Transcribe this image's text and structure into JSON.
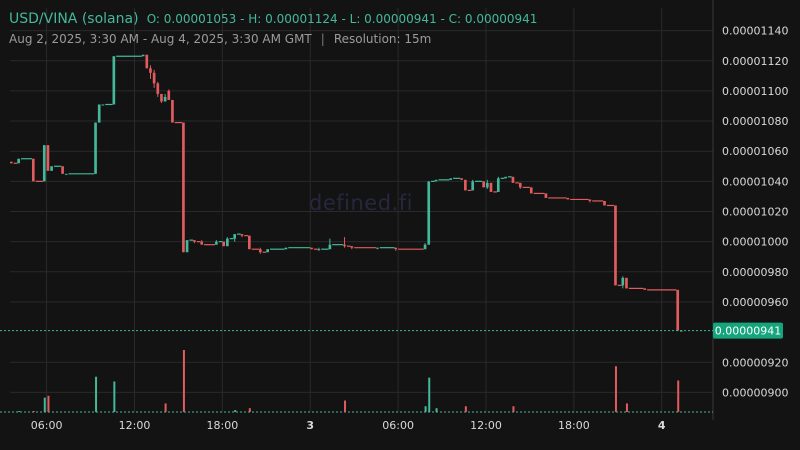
{
  "header": {
    "pair": "USD/VINA (solana)",
    "ohlc": "O: 0.00001053 - H: 0.00001124 - L: 0.00000941 - C: 0.00000941",
    "range": "Aug 2, 2025, 3:30 AM - Aug 4, 2025, 3:30 AM GMT",
    "separator": "|",
    "resolution": "Resolution: 15m"
  },
  "watermark": "defined.fi",
  "colors": {
    "background": "#131313",
    "up": "#43b99a",
    "down": "#e15c5f",
    "grid": "#2a2a2a",
    "text": "#d9d9d9",
    "last_price_tag": "#14a57d"
  },
  "chart_data": {
    "type": "candlestick",
    "ylim": [
      8.87e-06,
      1.155e-05
    ],
    "yticks": [
      "0.00001140",
      "0.00001120",
      "0.00001100",
      "0.00001080",
      "0.00001060",
      "0.00001040",
      "0.00001020",
      "0.00001000",
      "0.00000980",
      "0.00000960",
      "0.00000920",
      "0.00000900"
    ],
    "ytick_values": [
      1.14e-05,
      1.12e-05,
      1.1e-05,
      1.08e-05,
      1.06e-05,
      1.04e-05,
      1.02e-05,
      1e-05,
      9.8e-06,
      9.6e-06,
      9.2e-06,
      9e-06
    ],
    "last_price": "0.00000941",
    "last_price_value": 9.41e-06,
    "xlim": [
      "2025-08-02T03:30",
      "2025-08-04T03:30"
    ],
    "xticks": [
      {
        "label": "06:00",
        "time": "2025-08-02T06:00",
        "bold": false
      },
      {
        "label": "12:00",
        "time": "2025-08-02T12:00",
        "bold": false
      },
      {
        "label": "18:00",
        "time": "2025-08-02T18:00",
        "bold": false
      },
      {
        "label": "3",
        "time": "2025-08-03T00:00",
        "bold": true
      },
      {
        "label": "06:00",
        "time": "2025-08-03T06:00",
        "bold": false
      },
      {
        "label": "12:00",
        "time": "2025-08-03T12:00",
        "bold": false
      },
      {
        "label": "18:00",
        "time": "2025-08-03T18:00",
        "bold": false
      },
      {
        "label": "4",
        "time": "2025-08-04T00:00",
        "bold": true
      }
    ],
    "candles": [
      {
        "t": "2025-08-02T03:30",
        "o": 1.053e-05,
        "h": 1.053e-05,
        "l": 1.052e-05,
        "c": 1.052e-05
      },
      {
        "t": "2025-08-02T04:00",
        "o": 1.052e-05,
        "h": 1.055e-05,
        "l": 1.052e-05,
        "c": 1.055e-05
      },
      {
        "t": "2025-08-02T05:00",
        "o": 1.055e-05,
        "h": 1.055e-05,
        "l": 1.04e-05,
        "c": 1.04e-05
      },
      {
        "t": "2025-08-02T05:45",
        "o": 1.04e-05,
        "h": 1.064e-05,
        "l": 1.04e-05,
        "c": 1.064e-05
      },
      {
        "t": "2025-08-02T06:00",
        "o": 1.064e-05,
        "h": 1.064e-05,
        "l": 1.047e-05,
        "c": 1.047e-05
      },
      {
        "t": "2025-08-02T06:15",
        "o": 1.047e-05,
        "h": 1.05e-05,
        "l": 1.047e-05,
        "c": 1.05e-05
      },
      {
        "t": "2025-08-02T07:00",
        "o": 1.05e-05,
        "h": 1.05e-05,
        "l": 1.045e-05,
        "c": 1.045e-05
      },
      {
        "t": "2025-08-02T07:15",
        "o": 1.045e-05,
        "h": 1.045e-05,
        "l": 1.045e-05,
        "c": 1.045e-05
      },
      {
        "t": "2025-08-02T09:15",
        "o": 1.045e-05,
        "h": 1.079e-05,
        "l": 1.045e-05,
        "c": 1.079e-05
      },
      {
        "t": "2025-08-02T09:30",
        "o": 1.079e-05,
        "h": 1.091e-05,
        "l": 1.079e-05,
        "c": 1.091e-05
      },
      {
        "t": "2025-08-02T09:45",
        "o": 1.091e-05,
        "h": 1.091e-05,
        "l": 1.091e-05,
        "c": 1.091e-05
      },
      {
        "t": "2025-08-02T10:30",
        "o": 1.091e-05,
        "h": 1.123e-05,
        "l": 1.091e-05,
        "c": 1.123e-05
      },
      {
        "t": "2025-08-02T12:30",
        "o": 1.123e-05,
        "h": 1.124e-05,
        "l": 1.123e-05,
        "c": 1.124e-05
      },
      {
        "t": "2025-08-02T12:45",
        "o": 1.124e-05,
        "h": 1.124e-05,
        "l": 1.115e-05,
        "c": 1.115e-05
      },
      {
        "t": "2025-08-02T13:00",
        "o": 1.115e-05,
        "h": 1.117e-05,
        "l": 1.108e-05,
        "c": 1.112e-05
      },
      {
        "t": "2025-08-02T13:15",
        "o": 1.112e-05,
        "h": 1.114e-05,
        "l": 1.102e-05,
        "c": 1.105e-05
      },
      {
        "t": "2025-08-02T13:30",
        "o": 1.105e-05,
        "h": 1.106e-05,
        "l": 1.096e-05,
        "c": 1.098e-05
      },
      {
        "t": "2025-08-02T13:45",
        "o": 1.098e-05,
        "h": 1.098e-05,
        "l": 1.092e-05,
        "c": 1.093e-05
      },
      {
        "t": "2025-08-02T14:00",
        "o": 1.093e-05,
        "h": 1.098e-05,
        "l": 1.093e-05,
        "c": 1.096e-05
      },
      {
        "t": "2025-08-02T14:15",
        "o": 1.1e-05,
        "h": 1.101e-05,
        "l": 1.094e-05,
        "c": 1.094e-05
      },
      {
        "t": "2025-08-02T14:30",
        "o": 1.094e-05,
        "h": 1.094e-05,
        "l": 1.079e-05,
        "c": 1.079e-05
      },
      {
        "t": "2025-08-02T15:15",
        "o": 1.079e-05,
        "h": 1.079e-05,
        "l": 9.93e-06,
        "c": 9.93e-06
      },
      {
        "t": "2025-08-02T15:30",
        "o": 9.93e-06,
        "h": 1.001e-05,
        "l": 9.93e-06,
        "c": 1.001e-05
      },
      {
        "t": "2025-08-02T16:00",
        "o": 1.001e-05,
        "h": 1.001e-05,
        "l": 9.99e-06,
        "c": 1e-05
      },
      {
        "t": "2025-08-02T16:30",
        "o": 1e-05,
        "h": 1.001e-05,
        "l": 9.98e-06,
        "c": 9.98e-06
      },
      {
        "t": "2025-08-02T17:30",
        "o": 9.98e-06,
        "h": 1.001e-05,
        "l": 9.98e-06,
        "c": 1e-05
      },
      {
        "t": "2025-08-02T18:00",
        "o": 1e-05,
        "h": 1e-05,
        "l": 9.97e-06,
        "c": 9.97e-06
      },
      {
        "t": "2025-08-02T18:15",
        "o": 9.97e-06,
        "h": 1.003e-05,
        "l": 9.97e-06,
        "c": 1.002e-05
      },
      {
        "t": "2025-08-02T18:45",
        "o": 1.002e-05,
        "h": 1.005e-05,
        "l": 1e-05,
        "c": 1.005e-05
      },
      {
        "t": "2025-08-02T19:15",
        "o": 1.005e-05,
        "h": 1.005e-05,
        "l": 1.003e-05,
        "c": 1.004e-05
      },
      {
        "t": "2025-08-02T19:45",
        "o": 1.004e-05,
        "h": 1.004e-05,
        "l": 9.95e-06,
        "c": 9.95e-06
      },
      {
        "t": "2025-08-02T20:30",
        "o": 9.95e-06,
        "h": 9.96e-06,
        "l": 9.92e-06,
        "c": 9.93e-06
      },
      {
        "t": "2025-08-02T21:00",
        "o": 9.93e-06,
        "h": 9.95e-06,
        "l": 9.93e-06,
        "c": 9.95e-06
      },
      {
        "t": "2025-08-02T22:15",
        "o": 9.95e-06,
        "h": 9.96e-06,
        "l": 9.95e-06,
        "c": 9.96e-06
      },
      {
        "t": "2025-08-03T00:00",
        "o": 9.96e-06,
        "h": 9.96e-06,
        "l": 9.95e-06,
        "c": 9.95e-06
      },
      {
        "t": "2025-08-03T00:30",
        "o": 9.95e-06,
        "h": 9.96e-06,
        "l": 9.94e-06,
        "c": 9.95e-06
      },
      {
        "t": "2025-08-03T01:15",
        "o": 9.95e-06,
        "h": 1.002e-05,
        "l": 9.95e-06,
        "c": 9.98e-06
      },
      {
        "t": "2025-08-03T02:15",
        "o": 9.98e-06,
        "h": 1.003e-05,
        "l": 9.96e-06,
        "c": 9.97e-06
      },
      {
        "t": "2025-08-03T02:45",
        "o": 9.97e-06,
        "h": 9.97e-06,
        "l": 9.95e-06,
        "c": 9.96e-06
      },
      {
        "t": "2025-08-03T04:30",
        "o": 9.96e-06,
        "h": 9.96e-06,
        "l": 9.95e-06,
        "c": 9.96e-06
      },
      {
        "t": "2025-08-03T05:45",
        "o": 9.96e-06,
        "h": 9.96e-06,
        "l": 9.94e-06,
        "c": 9.95e-06
      },
      {
        "t": "2025-08-03T07:45",
        "o": 9.95e-06,
        "h": 9.99e-06,
        "l": 9.95e-06,
        "c": 9.98e-06
      },
      {
        "t": "2025-08-03T08:00",
        "o": 9.98e-06,
        "h": 1.04e-05,
        "l": 9.98e-06,
        "c": 1.04e-05
      },
      {
        "t": "2025-08-03T08:30",
        "o": 1.04e-05,
        "h": 1.041e-05,
        "l": 1.04e-05,
        "c": 1.041e-05
      },
      {
        "t": "2025-08-03T09:30",
        "o": 1.041e-05,
        "h": 1.042e-05,
        "l": 1.041e-05,
        "c": 1.042e-05
      },
      {
        "t": "2025-08-03T10:15",
        "o": 1.042e-05,
        "h": 1.042e-05,
        "l": 1.041e-05,
        "c": 1.041e-05
      },
      {
        "t": "2025-08-03T10:30",
        "o": 1.041e-05,
        "h": 1.041e-05,
        "l": 1.034e-05,
        "c": 1.034e-05
      },
      {
        "t": "2025-08-03T11:00",
        "o": 1.034e-05,
        "h": 1.041e-05,
        "l": 1.034e-05,
        "c": 1.04e-05
      },
      {
        "t": "2025-08-03T11:45",
        "o": 1.04e-05,
        "h": 1.04e-05,
        "l": 1.036e-05,
        "c": 1.036e-05
      },
      {
        "t": "2025-08-03T12:00",
        "o": 1.036e-05,
        "h": 1.041e-05,
        "l": 1.035e-05,
        "c": 1.039e-05
      },
      {
        "t": "2025-08-03T12:15",
        "o": 1.039e-05,
        "h": 1.039e-05,
        "l": 1.033e-05,
        "c": 1.033e-05
      },
      {
        "t": "2025-08-03T12:45",
        "o": 1.033e-05,
        "h": 1.043e-05,
        "l": 1.033e-05,
        "c": 1.042e-05
      },
      {
        "t": "2025-08-03T13:15",
        "o": 1.042e-05,
        "h": 1.043e-05,
        "l": 1.042e-05,
        "c": 1.043e-05
      },
      {
        "t": "2025-08-03T13:45",
        "o": 1.043e-05,
        "h": 1.043e-05,
        "l": 1.039e-05,
        "c": 1.039e-05
      },
      {
        "t": "2025-08-03T14:15",
        "o": 1.039e-05,
        "h": 1.039e-05,
        "l": 1.035e-05,
        "c": 1.036e-05
      },
      {
        "t": "2025-08-03T15:00",
        "o": 1.036e-05,
        "h": 1.036e-05,
        "l": 1.032e-05,
        "c": 1.032e-05
      },
      {
        "t": "2025-08-03T16:00",
        "o": 1.032e-05,
        "h": 1.032e-05,
        "l": 1.029e-05,
        "c": 1.029e-05
      },
      {
        "t": "2025-08-03T17:30",
        "o": 1.029e-05,
        "h": 1.029e-05,
        "l": 1.028e-05,
        "c": 1.028e-05
      },
      {
        "t": "2025-08-03T19:00",
        "o": 1.028e-05,
        "h": 1.028e-05,
        "l": 1.026e-05,
        "c": 1.027e-05
      },
      {
        "t": "2025-08-03T20:00",
        "o": 1.027e-05,
        "h": 1.027e-05,
        "l": 1.024e-05,
        "c": 1.024e-05
      },
      {
        "t": "2025-08-03T20:45",
        "o": 1.024e-05,
        "h": 1.024e-05,
        "l": 9.71e-06,
        "c": 9.71e-06
      },
      {
        "t": "2025-08-03T21:15",
        "o": 9.71e-06,
        "h": 9.77e-06,
        "l": 9.69e-06,
        "c": 9.76e-06
      },
      {
        "t": "2025-08-03T21:30",
        "o": 9.76e-06,
        "h": 9.76e-06,
        "l": 9.69e-06,
        "c": 9.69e-06
      },
      {
        "t": "2025-08-03T22:45",
        "o": 9.69e-06,
        "h": 9.69e-06,
        "l": 9.68e-06,
        "c": 9.68e-06
      },
      {
        "t": "2025-08-04T01:00",
        "o": 9.68e-06,
        "h": 9.68e-06,
        "l": 9.41e-06,
        "c": 9.41e-06
      },
      {
        "t": "2025-08-04T01:15",
        "o": 9.41e-06,
        "h": 9.41e-06,
        "l": 9.41e-06,
        "c": 9.41e-06
      }
    ],
    "volume": [
      {
        "t": "2025-08-02T04:00",
        "v": 1,
        "up": true
      },
      {
        "t": "2025-08-02T05:00",
        "v": 1,
        "up": false
      },
      {
        "t": "2025-08-02T05:45",
        "v": 15,
        "up": true
      },
      {
        "t": "2025-08-02T06:00",
        "v": 17,
        "up": false
      },
      {
        "t": "2025-08-02T09:15",
        "v": 37,
        "up": true
      },
      {
        "t": "2025-08-02T10:30",
        "v": 32,
        "up": true
      },
      {
        "t": "2025-08-02T14:00",
        "v": 9,
        "up": false
      },
      {
        "t": "2025-08-02T15:15",
        "v": 65,
        "up": false
      },
      {
        "t": "2025-08-02T18:45",
        "v": 2,
        "up": true
      },
      {
        "t": "2025-08-02T19:45",
        "v": 4,
        "up": false
      },
      {
        "t": "2025-08-03T02:15",
        "v": 12,
        "up": false
      },
      {
        "t": "2025-08-03T07:45",
        "v": 6,
        "up": true
      },
      {
        "t": "2025-08-03T08:00",
        "v": 36,
        "up": true
      },
      {
        "t": "2025-08-03T08:30",
        "v": 4,
        "up": true
      },
      {
        "t": "2025-08-03T10:30",
        "v": 6,
        "up": false
      },
      {
        "t": "2025-08-03T13:45",
        "v": 6,
        "up": false
      },
      {
        "t": "2025-08-03T20:45",
        "v": 48,
        "up": false
      },
      {
        "t": "2025-08-03T21:30",
        "v": 9,
        "up": false
      },
      {
        "t": "2025-08-04T01:00",
        "v": 33,
        "up": false
      }
    ]
  }
}
